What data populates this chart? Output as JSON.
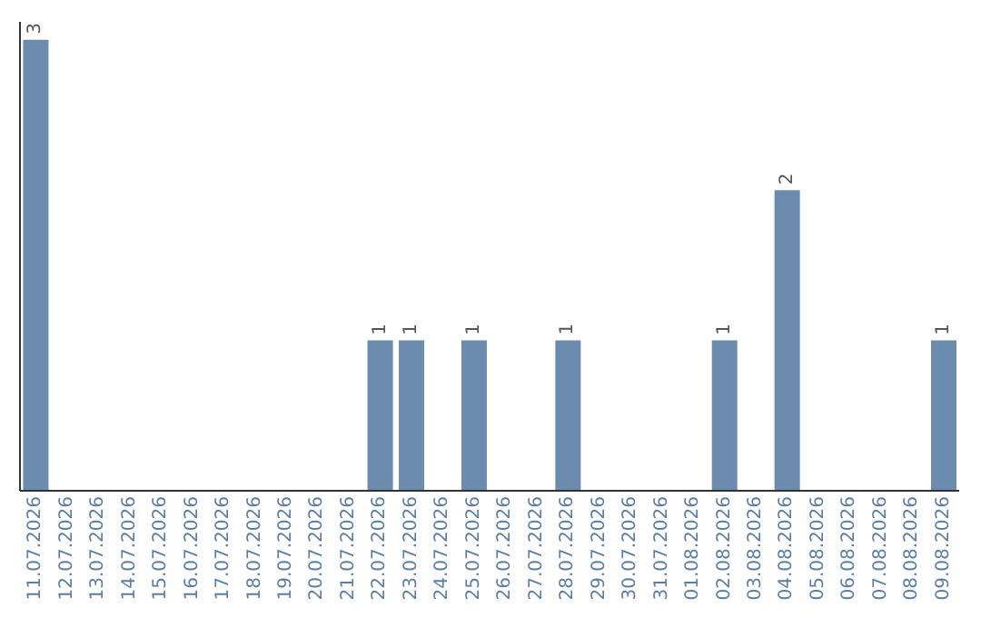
{
  "chart_data": {
    "type": "bar",
    "categories": [
      "11.07.2026",
      "12.07.2026",
      "13.07.2026",
      "14.07.2026",
      "15.07.2026",
      "16.07.2026",
      "17.07.2026",
      "18.07.2026",
      "19.07.2026",
      "20.07.2026",
      "21.07.2026",
      "22.07.2026",
      "23.07.2026",
      "24.07.2026",
      "25.07.2026",
      "26.07.2026",
      "27.07.2026",
      "28.07.2026",
      "29.07.2026",
      "30.07.2026",
      "31.07.2026",
      "01.08.2026",
      "02.08.2026",
      "03.08.2026",
      "04.08.2026",
      "05.08.2026",
      "06.08.2026",
      "07.08.2026",
      "08.08.2026",
      "09.08.2026"
    ],
    "values": [
      3,
      0,
      0,
      0,
      0,
      0,
      0,
      0,
      0,
      0,
      0,
      1,
      1,
      0,
      1,
      0,
      0,
      1,
      0,
      0,
      0,
      0,
      1,
      0,
      2,
      0,
      0,
      0,
      0,
      1
    ],
    "value_labels": [
      "3",
      null,
      null,
      null,
      null,
      null,
      null,
      null,
      null,
      null,
      null,
      "1",
      "1",
      null,
      "1",
      null,
      null,
      "1",
      null,
      null,
      null,
      null,
      "1",
      null,
      "2",
      null,
      null,
      null,
      null,
      "1"
    ],
    "color": "#6b8cae",
    "tick_labels": "x"
  }
}
